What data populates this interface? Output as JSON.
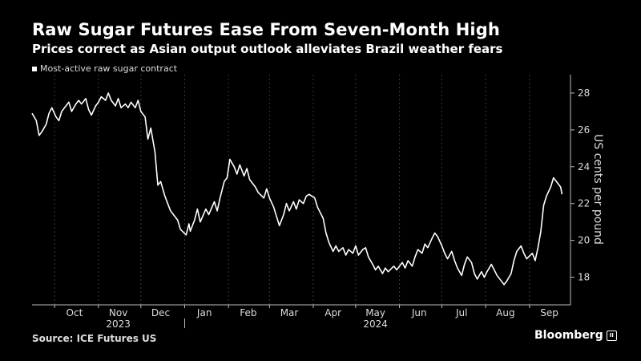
{
  "header": {
    "title": "Raw Sugar Futures Ease From Seven-Month High",
    "subtitle": "Prices correct as Asian output outlook alleviates Brazil weather fears"
  },
  "footer": {
    "source": "Source: ICE Futures US",
    "brand": "Bloomberg",
    "brand_mark": "II"
  },
  "colors": {
    "background": "#000000",
    "line": "#ffffff",
    "grid": "#3a3a3a"
  },
  "chart_data": {
    "type": "line",
    "legend_position": "top-left",
    "grid": "vertical-dashed",
    "x_range": [
      "2023-09-15",
      "2024-09-30"
    ],
    "x_ticks": [
      {
        "date": "2023-10-15",
        "label": "Oct"
      },
      {
        "date": "2023-11-15",
        "label": "Nov"
      },
      {
        "date": "2023-12-15",
        "label": "Dec"
      },
      {
        "date": "2024-01-15",
        "label": "Jan"
      },
      {
        "date": "2024-02-15",
        "label": "Feb"
      },
      {
        "date": "2024-03-15",
        "label": "Mar"
      },
      {
        "date": "2024-04-15",
        "label": "Apr"
      },
      {
        "date": "2024-05-15",
        "label": "May"
      },
      {
        "date": "2024-06-15",
        "label": "Jun"
      },
      {
        "date": "2024-07-15",
        "label": "Jul"
      },
      {
        "date": "2024-08-15",
        "label": "Aug"
      },
      {
        "date": "2024-09-15",
        "label": "Sep"
      }
    ],
    "year_labels": [
      {
        "label": "2023",
        "center": "2023-11-15"
      },
      {
        "label": "2024",
        "center": "2024-05-15"
      }
    ],
    "year_divider": "2024-01-01",
    "ylabel": "US cents per pound",
    "ylim": [
      16.5,
      29
    ],
    "y_ticks": [
      18,
      20,
      22,
      24,
      26,
      28
    ],
    "series": [
      {
        "name": "Most-active raw sugar contract",
        "points": [
          [
            "2023-09-15",
            26.9
          ],
          [
            "2023-09-18",
            26.5
          ],
          [
            "2023-09-20",
            25.7
          ],
          [
            "2023-09-22",
            25.9
          ],
          [
            "2023-09-25",
            26.3
          ],
          [
            "2023-09-27",
            26.9
          ],
          [
            "2023-09-29",
            27.2
          ],
          [
            "2023-10-02",
            26.7
          ],
          [
            "2023-10-04",
            26.5
          ],
          [
            "2023-10-06",
            27.0
          ],
          [
            "2023-10-09",
            27.3
          ],
          [
            "2023-10-11",
            27.5
          ],
          [
            "2023-10-13",
            27.0
          ],
          [
            "2023-10-16",
            27.4
          ],
          [
            "2023-10-18",
            27.6
          ],
          [
            "2023-10-20",
            27.4
          ],
          [
            "2023-10-23",
            27.7
          ],
          [
            "2023-10-25",
            27.1
          ],
          [
            "2023-10-27",
            26.8
          ],
          [
            "2023-10-30",
            27.3
          ],
          [
            "2023-11-01",
            27.5
          ],
          [
            "2023-11-03",
            27.8
          ],
          [
            "2023-11-06",
            27.6
          ],
          [
            "2023-11-08",
            28.0
          ],
          [
            "2023-11-10",
            27.6
          ],
          [
            "2023-11-13",
            27.3
          ],
          [
            "2023-11-15",
            27.7
          ],
          [
            "2023-11-17",
            27.2
          ],
          [
            "2023-11-20",
            27.4
          ],
          [
            "2023-11-22",
            27.2
          ],
          [
            "2023-11-24",
            27.5
          ],
          [
            "2023-11-27",
            27.2
          ],
          [
            "2023-11-29",
            27.6
          ],
          [
            "2023-12-01",
            27.0
          ],
          [
            "2023-12-04",
            26.7
          ],
          [
            "2023-12-06",
            25.5
          ],
          [
            "2023-12-08",
            26.1
          ],
          [
            "2023-12-11",
            24.8
          ],
          [
            "2023-12-13",
            23.0
          ],
          [
            "2023-12-15",
            23.2
          ],
          [
            "2023-12-18",
            22.4
          ],
          [
            "2023-12-20",
            22.0
          ],
          [
            "2023-12-22",
            21.6
          ],
          [
            "2023-12-27",
            21.1
          ],
          [
            "2023-12-29",
            20.6
          ],
          [
            "2024-01-02",
            20.3
          ],
          [
            "2024-01-04",
            20.9
          ],
          [
            "2024-01-05",
            20.5
          ],
          [
            "2024-01-08",
            21.1
          ],
          [
            "2024-01-10",
            21.7
          ],
          [
            "2024-01-12",
            21.0
          ],
          [
            "2024-01-16",
            21.7
          ],
          [
            "2024-01-18",
            21.4
          ],
          [
            "2024-01-22",
            22.1
          ],
          [
            "2024-01-24",
            21.6
          ],
          [
            "2024-01-26",
            22.3
          ],
          [
            "2024-01-29",
            23.2
          ],
          [
            "2024-01-31",
            23.4
          ],
          [
            "2024-02-02",
            24.4
          ],
          [
            "2024-02-05",
            24.0
          ],
          [
            "2024-02-07",
            23.6
          ],
          [
            "2024-02-09",
            24.1
          ],
          [
            "2024-02-12",
            23.5
          ],
          [
            "2024-02-14",
            23.9
          ],
          [
            "2024-02-16",
            23.3
          ],
          [
            "2024-02-20",
            22.9
          ],
          [
            "2024-02-22",
            22.6
          ],
          [
            "2024-02-26",
            22.3
          ],
          [
            "2024-02-28",
            22.8
          ],
          [
            "2024-03-01",
            22.3
          ],
          [
            "2024-03-04",
            21.8
          ],
          [
            "2024-03-06",
            21.3
          ],
          [
            "2024-03-08",
            20.8
          ],
          [
            "2024-03-11",
            21.4
          ],
          [
            "2024-03-13",
            22.0
          ],
          [
            "2024-03-15",
            21.6
          ],
          [
            "2024-03-18",
            22.1
          ],
          [
            "2024-03-20",
            21.7
          ],
          [
            "2024-03-22",
            22.2
          ],
          [
            "2024-03-25",
            22.0
          ],
          [
            "2024-03-27",
            22.4
          ],
          [
            "2024-03-29",
            22.5
          ],
          [
            "2024-04-02",
            22.3
          ],
          [
            "2024-04-04",
            21.8
          ],
          [
            "2024-04-08",
            21.2
          ],
          [
            "2024-04-10",
            20.4
          ],
          [
            "2024-04-12",
            19.9
          ],
          [
            "2024-04-15",
            19.4
          ],
          [
            "2024-04-17",
            19.7
          ],
          [
            "2024-04-19",
            19.4
          ],
          [
            "2024-04-22",
            19.6
          ],
          [
            "2024-04-24",
            19.2
          ],
          [
            "2024-04-26",
            19.5
          ],
          [
            "2024-04-29",
            19.3
          ],
          [
            "2024-05-01",
            19.7
          ],
          [
            "2024-05-03",
            19.2
          ],
          [
            "2024-05-06",
            19.5
          ],
          [
            "2024-05-08",
            19.6
          ],
          [
            "2024-05-10",
            19.1
          ],
          [
            "2024-05-13",
            18.7
          ],
          [
            "2024-05-15",
            18.4
          ],
          [
            "2024-05-17",
            18.6
          ],
          [
            "2024-05-20",
            18.2
          ],
          [
            "2024-05-22",
            18.5
          ],
          [
            "2024-05-24",
            18.3
          ],
          [
            "2024-05-28",
            18.6
          ],
          [
            "2024-05-30",
            18.4
          ],
          [
            "2024-06-03",
            18.8
          ],
          [
            "2024-06-05",
            18.5
          ],
          [
            "2024-06-07",
            18.9
          ],
          [
            "2024-06-10",
            18.6
          ],
          [
            "2024-06-12",
            19.1
          ],
          [
            "2024-06-14",
            19.5
          ],
          [
            "2024-06-17",
            19.3
          ],
          [
            "2024-06-19",
            19.8
          ],
          [
            "2024-06-21",
            19.6
          ],
          [
            "2024-06-24",
            20.1
          ],
          [
            "2024-06-26",
            20.4
          ],
          [
            "2024-06-28",
            20.2
          ],
          [
            "2024-07-01",
            19.7
          ],
          [
            "2024-07-03",
            19.3
          ],
          [
            "2024-07-05",
            19.0
          ],
          [
            "2024-07-08",
            19.4
          ],
          [
            "2024-07-10",
            18.9
          ],
          [
            "2024-07-12",
            18.5
          ],
          [
            "2024-07-15",
            18.1
          ],
          [
            "2024-07-17",
            18.7
          ],
          [
            "2024-07-19",
            19.1
          ],
          [
            "2024-07-22",
            18.8
          ],
          [
            "2024-07-24",
            18.2
          ],
          [
            "2024-07-26",
            17.9
          ],
          [
            "2024-07-29",
            18.3
          ],
          [
            "2024-07-31",
            18.0
          ],
          [
            "2024-08-02",
            18.3
          ],
          [
            "2024-08-05",
            18.7
          ],
          [
            "2024-08-07",
            18.4
          ],
          [
            "2024-08-09",
            18.1
          ],
          [
            "2024-08-12",
            17.8
          ],
          [
            "2024-08-14",
            17.6
          ],
          [
            "2024-08-16",
            17.8
          ],
          [
            "2024-08-19",
            18.2
          ],
          [
            "2024-08-21",
            18.9
          ],
          [
            "2024-08-23",
            19.4
          ],
          [
            "2024-08-26",
            19.7
          ],
          [
            "2024-08-28",
            19.3
          ],
          [
            "2024-08-30",
            19.0
          ],
          [
            "2024-09-03",
            19.3
          ],
          [
            "2024-09-05",
            18.9
          ],
          [
            "2024-09-07",
            19.6
          ],
          [
            "2024-09-09",
            20.5
          ],
          [
            "2024-09-11",
            21.9
          ],
          [
            "2024-09-13",
            22.4
          ],
          [
            "2024-09-16",
            22.9
          ],
          [
            "2024-09-18",
            23.4
          ],
          [
            "2024-09-20",
            23.2
          ],
          [
            "2024-09-23",
            22.9
          ],
          [
            "2024-09-24",
            22.5
          ]
        ]
      }
    ]
  }
}
